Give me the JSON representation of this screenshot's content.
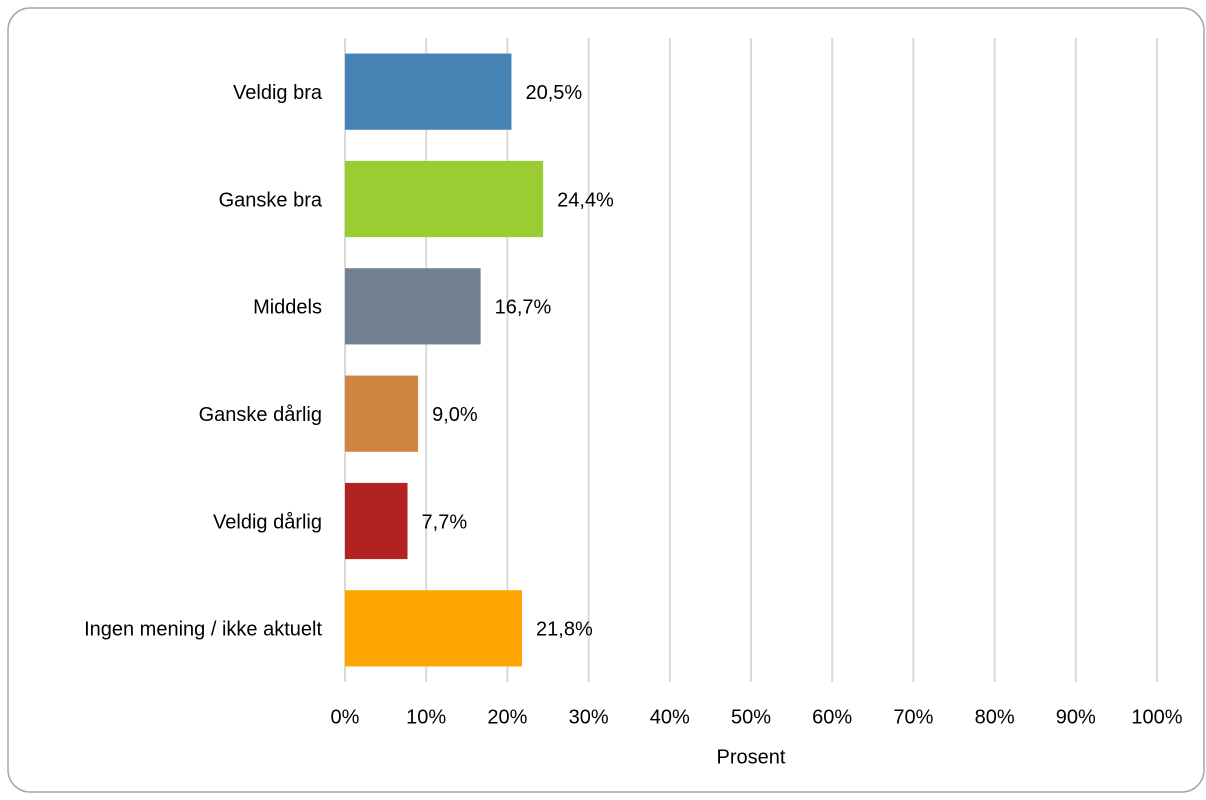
{
  "chart_data": {
    "type": "bar",
    "categories": [
      "Veldig bra",
      "Ganske bra",
      "Middels",
      "Ganske dårlig",
      "Veldig dårlig",
      "Ingen mening / ikke aktuelt"
    ],
    "values": [
      20.5,
      24.4,
      16.7,
      9.0,
      7.7,
      21.8
    ],
    "value_labels": [
      "20,5%",
      "24,4%",
      "16,7%",
      "9,0%",
      "7,7%",
      "21,8%"
    ],
    "colors": [
      "#4682b4",
      "#9acd32",
      "#708090",
      "#cd853f",
      "#b22222",
      "#ffa500"
    ],
    "xlim": [
      0,
      100
    ],
    "xticks": [
      {
        "value": 0,
        "label": "0%"
      },
      {
        "value": 10,
        "label": "10%"
      },
      {
        "value": 20,
        "label": "20%"
      },
      {
        "value": 30,
        "label": "30%"
      },
      {
        "value": 40,
        "label": "40%"
      },
      {
        "value": 50,
        "label": "50%"
      },
      {
        "value": 60,
        "label": "60%"
      },
      {
        "value": 70,
        "label": "70%"
      },
      {
        "value": 80,
        "label": "80%"
      },
      {
        "value": 90,
        "label": "90%"
      },
      {
        "value": 100,
        "label": "100%"
      }
    ],
    "xlabel": "Prosent",
    "grid": true
  }
}
